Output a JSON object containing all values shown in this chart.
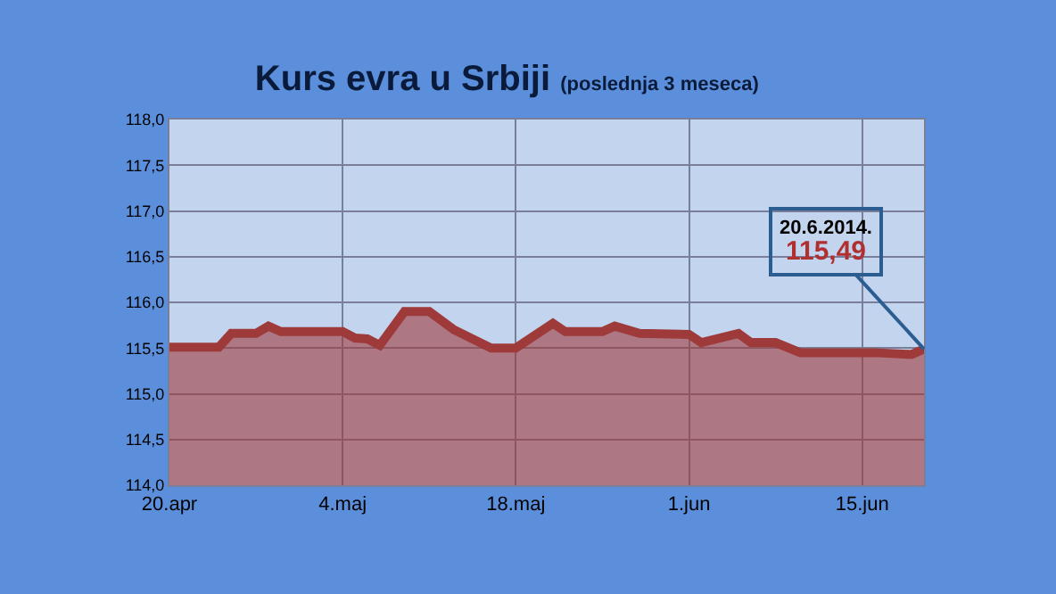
{
  "chart_data": {
    "type": "area",
    "title": "Kurs evra u Srbiji",
    "subtitle": "(poslednja 3 meseca)",
    "x": [
      "2014-04-20",
      "2014-04-24",
      "2014-04-25",
      "2014-04-27",
      "2014-04-28",
      "2014-04-29",
      "2014-05-04",
      "2014-05-05",
      "2014-05-06",
      "2014-05-07",
      "2014-05-09",
      "2014-05-11",
      "2014-05-13",
      "2014-05-16",
      "2014-05-18",
      "2014-05-21",
      "2014-05-22",
      "2014-05-25",
      "2014-05-26",
      "2014-05-28",
      "2014-06-01",
      "2014-06-02",
      "2014-06-05",
      "2014-06-06",
      "2014-06-08",
      "2014-06-10",
      "2014-06-12",
      "2014-06-16",
      "2014-06-19",
      "2014-06-20"
    ],
    "series": [
      {
        "color": "#9e3a3a",
        "values": [
          115.51,
          115.51,
          115.66,
          115.66,
          115.74,
          115.68,
          115.68,
          115.61,
          115.6,
          115.53,
          115.9,
          115.9,
          115.7,
          115.5,
          115.5,
          115.77,
          115.68,
          115.68,
          115.74,
          115.66,
          115.65,
          115.56,
          115.66,
          115.56,
          115.56,
          115.45,
          115.45,
          115.45,
          115.43,
          115.49
        ]
      }
    ],
    "xlim": [
      "2014-04-20",
      "2014-06-20"
    ],
    "xticks": [
      {
        "value": "2014-04-20",
        "label": "20.apr"
      },
      {
        "value": "2014-05-04",
        "label": "4.maj"
      },
      {
        "value": "2014-05-18",
        "label": "18.maj"
      },
      {
        "value": "2014-06-01",
        "label": "1.jun"
      },
      {
        "value": "2014-06-15",
        "label": "15.jun"
      }
    ],
    "ylim": [
      114,
      118
    ],
    "yticks": [
      {
        "value": 114,
        "label": "114,0"
      },
      {
        "value": 114.5,
        "label": "114,5"
      },
      {
        "value": 115,
        "label": "115,0"
      },
      {
        "value": 115.5,
        "label": "115,5"
      },
      {
        "value": 116,
        "label": "116,0"
      },
      {
        "value": 116.5,
        "label": "116,5"
      },
      {
        "value": 117,
        "label": "117,0"
      },
      {
        "value": 117.5,
        "label": "117,5"
      },
      {
        "value": 118,
        "label": "118,0"
      }
    ],
    "grid": true,
    "annotations": [
      {
        "text": "20.6.2014.\n115,49",
        "x": "2014-06-20",
        "y": 115.49
      }
    ]
  }
}
